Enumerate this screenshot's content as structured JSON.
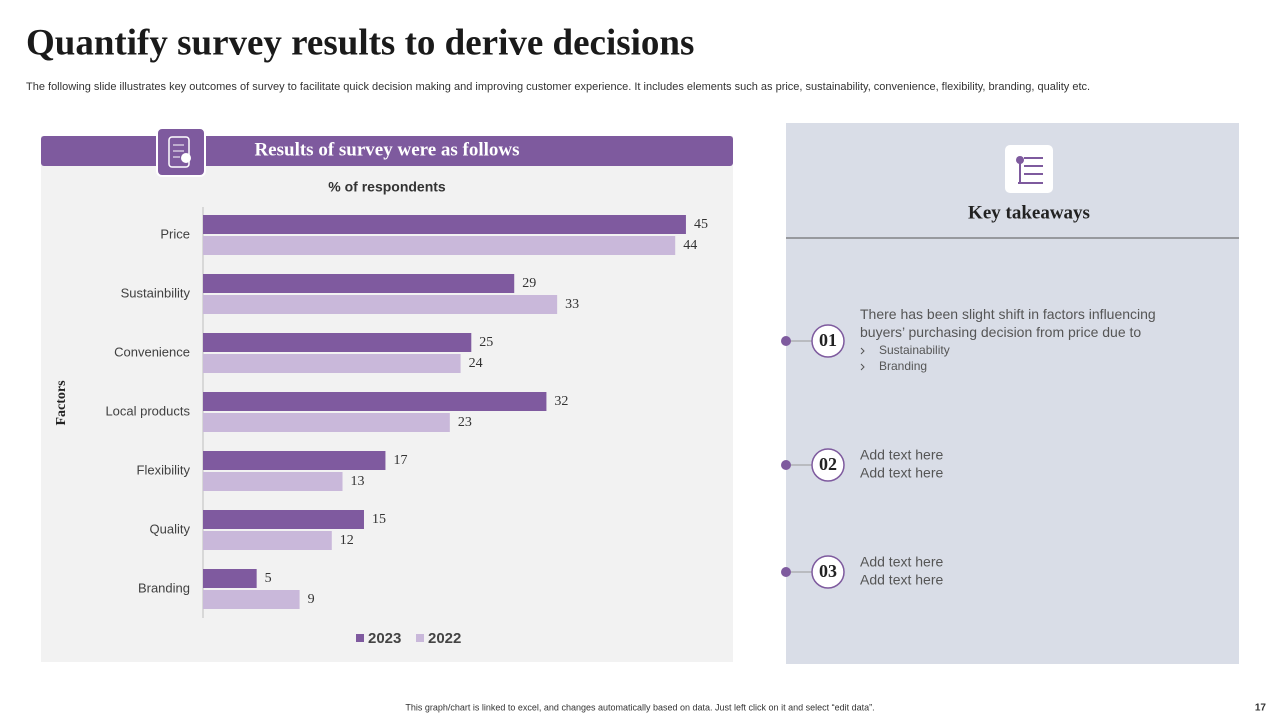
{
  "title": "Quantify survey results to derive decisions",
  "subtitle": "The following slide illustrates key outcomes of survey to facilitate quick decision making and improving customer experience. It includes elements such as price, sustainability, convenience, flexibility,  branding, quality etc.",
  "chart_data": {
    "type": "hbar",
    "panel_title": "Results of survey were as follows",
    "title": "% of respondents",
    "y_label": "Factors",
    "categories": [
      "Price",
      "Sustainbility",
      "Convenience",
      "Local products",
      "Flexibility",
      "Quality",
      "Branding"
    ],
    "series": [
      {
        "name": "2023",
        "color": "#7f5a9f",
        "values": [
          45,
          29,
          25,
          32,
          17,
          15,
          5
        ]
      },
      {
        "name": "2022",
        "color": "#c9b8da",
        "values": [
          44,
          33,
          24,
          23,
          13,
          12,
          9
        ]
      }
    ],
    "xlim": [
      0,
      50
    ],
    "legend": "bottom"
  },
  "takeaways": {
    "title": "Key takeaways",
    "items": [
      {
        "number": "01",
        "text": "There has been slight shift in factors influencing buyers’ purchasing decision from price due to",
        "bullets": [
          "Sustainability",
          "Branding"
        ]
      },
      {
        "number": "02",
        "lines": [
          "Add text here",
          "Add text here"
        ]
      },
      {
        "number": "03",
        "lines": [
          "Add text here",
          "Add text here"
        ]
      }
    ]
  },
  "footer": "This graph/chart is linked to excel, and changes automatically based on data. Just left click on it and select “edit data”.",
  "page_number": "17"
}
